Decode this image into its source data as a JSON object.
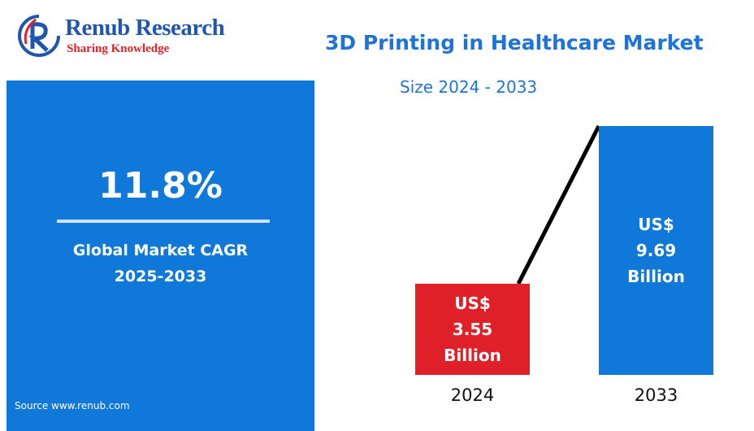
{
  "brand": {
    "name": "Renub Research",
    "tagline": "Sharing Knowledge"
  },
  "header": {
    "title": "3D Printing in Healthcare Market",
    "subtitle": "Size 2024 - 2033"
  },
  "cagr_panel": {
    "value": "11.8%",
    "label_line1": "Global Market CAGR",
    "label_line2": "2025-2033",
    "source": "Source  www.renub.com"
  },
  "colors": {
    "accent_blue": "#0f78d8",
    "bar_2024": "#e02028",
    "bar_2033": "#0f78d8",
    "trend_line": "#000000"
  },
  "chart_data": {
    "type": "bar",
    "categories": [
      "2024",
      "2033"
    ],
    "values": [
      3.55,
      9.69
    ],
    "unit": "US$ Billion",
    "bar_labels": [
      [
        "US$",
        "3.55",
        "Billion"
      ],
      [
        "US$",
        "9.69",
        "Billion"
      ]
    ],
    "title": "3D Printing in Healthcare Market",
    "subtitle": "Size 2024 - 2033",
    "trend_line": true,
    "grid": false
  }
}
